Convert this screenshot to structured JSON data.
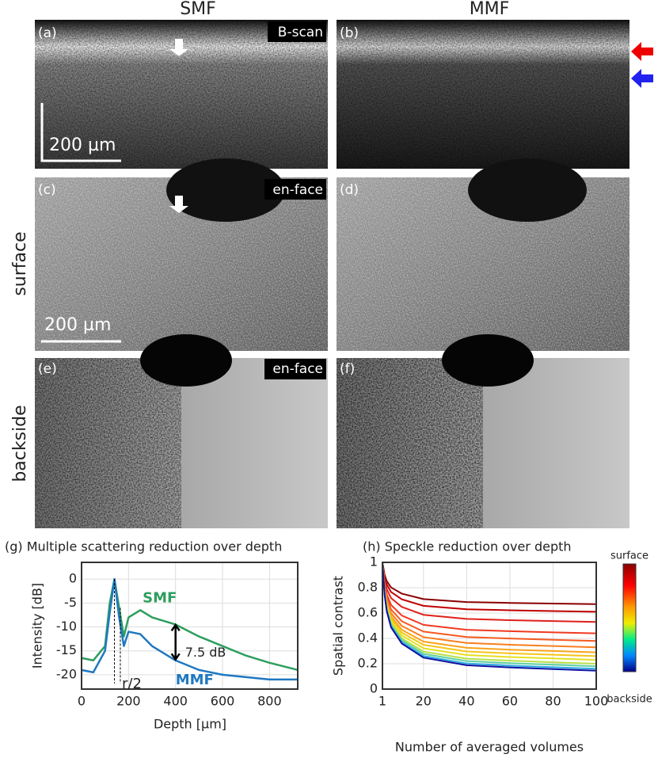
{
  "panels": {
    "columns": [
      "SMF",
      "MMF"
    ],
    "rows": [
      "surface",
      "backside"
    ],
    "letters": [
      "(a)",
      "(b)",
      "(c)",
      "(d)",
      "(e)",
      "(f)"
    ],
    "tags": [
      "B-scan",
      "en-face",
      "en-face"
    ],
    "scale_bar": "200 µm"
  },
  "chart_data": [
    {
      "type": "line",
      "title": "(g) Multiple scattering reduction over depth",
      "x_label": "Depth [µm]",
      "y_label": "Intensity [dB]",
      "x": [
        0,
        50,
        100,
        120,
        140,
        160,
        180,
        200,
        250,
        300,
        400,
        500,
        600,
        700,
        800,
        920
      ],
      "xlim": [
        0,
        920
      ],
      "xticks": [
        0,
        200,
        400,
        600,
        800
      ],
      "ylim": [
        -23,
        3.5
      ],
      "yticks": [
        0,
        -5,
        -10,
        -15,
        -20
      ],
      "grid": true,
      "series": [
        {
          "name": "SMF",
          "color": "#2e9e5e",
          "values": [
            -16.5,
            -17,
            -14,
            -5,
            0,
            -6,
            -12,
            -8,
            -6.5,
            -8,
            -9.5,
            -12,
            -14,
            -16,
            -17.5,
            -19
          ]
        },
        {
          "name": "MMF",
          "color": "#1f78c1",
          "values": [
            -19,
            -19.5,
            -15,
            -7,
            0,
            -8,
            -14,
            -11,
            -11.5,
            -14,
            -17,
            -19,
            -20,
            -20.5,
            -21,
            -21
          ]
        }
      ],
      "annotations": [
        "7.5 dB",
        "r/2"
      ]
    },
    {
      "type": "line",
      "title": "(h) Speckle reduction over depth",
      "x_label": "Number of averaged volumes",
      "y_label": "Spatial contrast",
      "x": [
        1,
        2,
        3,
        5,
        10,
        20,
        40,
        60,
        80,
        100
      ],
      "xlim": [
        1,
        100
      ],
      "xticks": [
        1,
        20,
        40,
        60,
        80,
        100
      ],
      "ylim": [
        0,
        1
      ],
      "yticks": [
        0,
        0.2,
        0.4,
        0.6,
        0.8,
        1
      ],
      "grid": true,
      "colorbar": {
        "labels": [
          "surface",
          "backside"
        ]
      },
      "series": [
        {
          "color": "#8b0000",
          "values": [
            1,
            0.901,
            0.852,
            0.802,
            0.753,
            0.71,
            0.687,
            0.68,
            0.675,
            0.67
          ]
        },
        {
          "color": "#c00000",
          "values": [
            1,
            0.883,
            0.825,
            0.766,
            0.708,
            0.657,
            0.63,
            0.622,
            0.616,
            0.61
          ]
        },
        {
          "color": "#e0201a",
          "values": [
            1,
            0.859,
            0.789,
            0.718,
            0.648,
            0.586,
            0.554,
            0.544,
            0.537,
            0.53
          ]
        },
        {
          "color": "#f03a20",
          "values": [
            1,
            0.832,
            0.748,
            0.664,
            0.58,
            0.507,
            0.468,
            0.457,
            0.448,
            0.44
          ]
        },
        {
          "color": "#f55a20",
          "values": [
            1,
            0.814,
            0.721,
            0.628,
            0.535,
            0.454,
            0.411,
            0.399,
            0.389,
            0.38
          ]
        },
        {
          "color": "#f77f1e",
          "values": [
            1,
            0.799,
            0.699,
            0.598,
            0.498,
            0.41,
            0.364,
            0.35,
            0.34,
            0.33
          ]
        },
        {
          "color": "#f9a31b",
          "values": [
            1,
            0.787,
            0.681,
            0.574,
            0.468,
            0.375,
            0.326,
            0.311,
            0.301,
            0.29
          ]
        },
        {
          "color": "#f5c518",
          "values": [
            1,
            0.778,
            0.667,
            0.556,
            0.445,
            0.349,
            0.297,
            0.282,
            0.271,
            0.26
          ]
        },
        {
          "color": "#e6e020",
          "values": [
            1,
            0.769,
            0.654,
            0.538,
            0.423,
            0.322,
            0.269,
            0.253,
            0.242,
            0.23
          ]
        },
        {
          "color": "#b8e04a",
          "values": [
            1,
            0.76,
            0.64,
            0.52,
            0.4,
            0.296,
            0.24,
            0.224,
            0.212,
            0.2
          ]
        },
        {
          "color": "#5fd0a0",
          "values": [
            1,
            0.754,
            0.631,
            0.508,
            0.385,
            0.278,
            0.221,
            0.205,
            0.192,
            0.18
          ]
        },
        {
          "color": "#2aa8e0",
          "values": [
            1,
            0.748,
            0.622,
            0.496,
            0.37,
            0.261,
            0.202,
            0.185,
            0.173,
            0.16
          ]
        },
        {
          "color": "#1010a0",
          "values": [
            1,
            0.744,
            0.615,
            0.487,
            0.359,
            0.248,
            0.188,
            0.171,
            0.158,
            0.145
          ]
        }
      ]
    }
  ]
}
